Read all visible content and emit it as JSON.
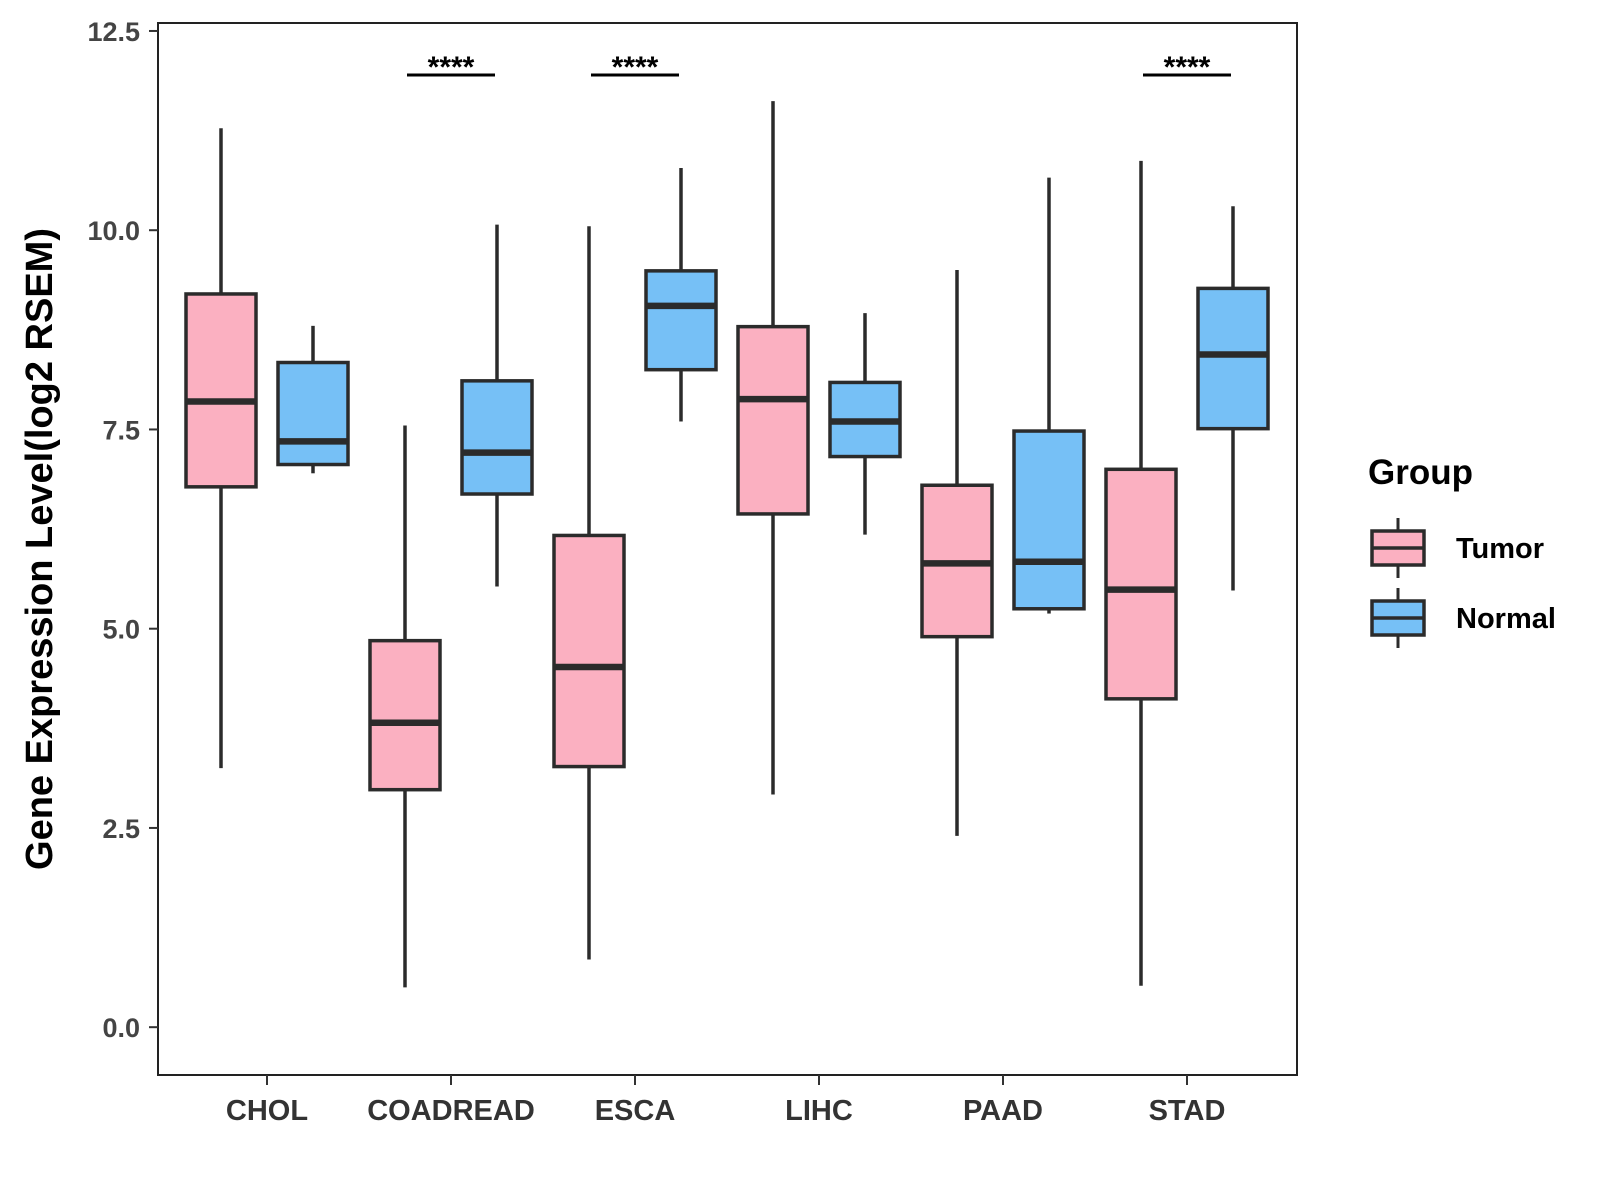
{
  "chart_data": {
    "type": "boxplot",
    "title": "",
    "xlabel": "",
    "ylabel": "Gene Expression Level(log2 RSEM)",
    "ylim": [
      -0.6,
      12.6
    ],
    "yticks": [
      0.0,
      2.5,
      5.0,
      7.5,
      10.0,
      12.5
    ],
    "ytick_labels": [
      "0.0",
      "2.5",
      "5.0",
      "7.5",
      "10.0",
      "12.5"
    ],
    "categories": [
      "CHOL",
      "COADREAD",
      "ESCA",
      "LIHC",
      "PAAD",
      "STAD"
    ],
    "legend": {
      "title": "Group",
      "position": "right",
      "entries": [
        {
          "name": "Tumor",
          "color": "#FBB0C1"
        },
        {
          "name": "Normal",
          "color": "#76C0F6"
        }
      ]
    },
    "series": [
      {
        "name": "Tumor",
        "color": "#FBB0C1",
        "boxes": [
          {
            "min": 3.25,
            "q1": 6.78,
            "median": 7.85,
            "q3": 9.2,
            "max": 11.28
          },
          {
            "min": 0.5,
            "q1": 2.98,
            "median": 3.82,
            "q3": 4.85,
            "max": 7.55
          },
          {
            "min": 0.85,
            "q1": 3.27,
            "median": 4.52,
            "q3": 6.17,
            "max": 10.05
          },
          {
            "min": 2.92,
            "q1": 6.44,
            "median": 7.88,
            "q3": 8.79,
            "max": 11.62
          },
          {
            "min": 2.4,
            "q1": 4.9,
            "median": 5.82,
            "q3": 6.8,
            "max": 9.5
          },
          {
            "min": 0.52,
            "q1": 4.12,
            "median": 5.49,
            "q3": 7.0,
            "max": 10.87
          }
        ]
      },
      {
        "name": "Normal",
        "color": "#76C0F6",
        "boxes": [
          {
            "min": 6.95,
            "q1": 7.06,
            "median": 7.35,
            "q3": 8.34,
            "max": 8.8
          },
          {
            "min": 5.53,
            "q1": 6.69,
            "median": 7.21,
            "q3": 8.11,
            "max": 10.07
          },
          {
            "min": 7.6,
            "q1": 8.25,
            "median": 9.05,
            "q3": 9.49,
            "max": 10.78
          },
          {
            "min": 6.18,
            "q1": 7.16,
            "median": 7.6,
            "q3": 8.09,
            "max": 8.96
          },
          {
            "min": 5.19,
            "q1": 5.25,
            "median": 5.84,
            "q3": 7.48,
            "max": 10.66
          },
          {
            "min": 5.48,
            "q1": 7.51,
            "median": 8.44,
            "q3": 9.27,
            "max": 10.3
          }
        ]
      }
    ],
    "significance": [
      {
        "category": "COADREAD",
        "label": "****"
      },
      {
        "category": "ESCA",
        "label": "****"
      },
      {
        "category": "STAD",
        "label": "****"
      }
    ]
  }
}
